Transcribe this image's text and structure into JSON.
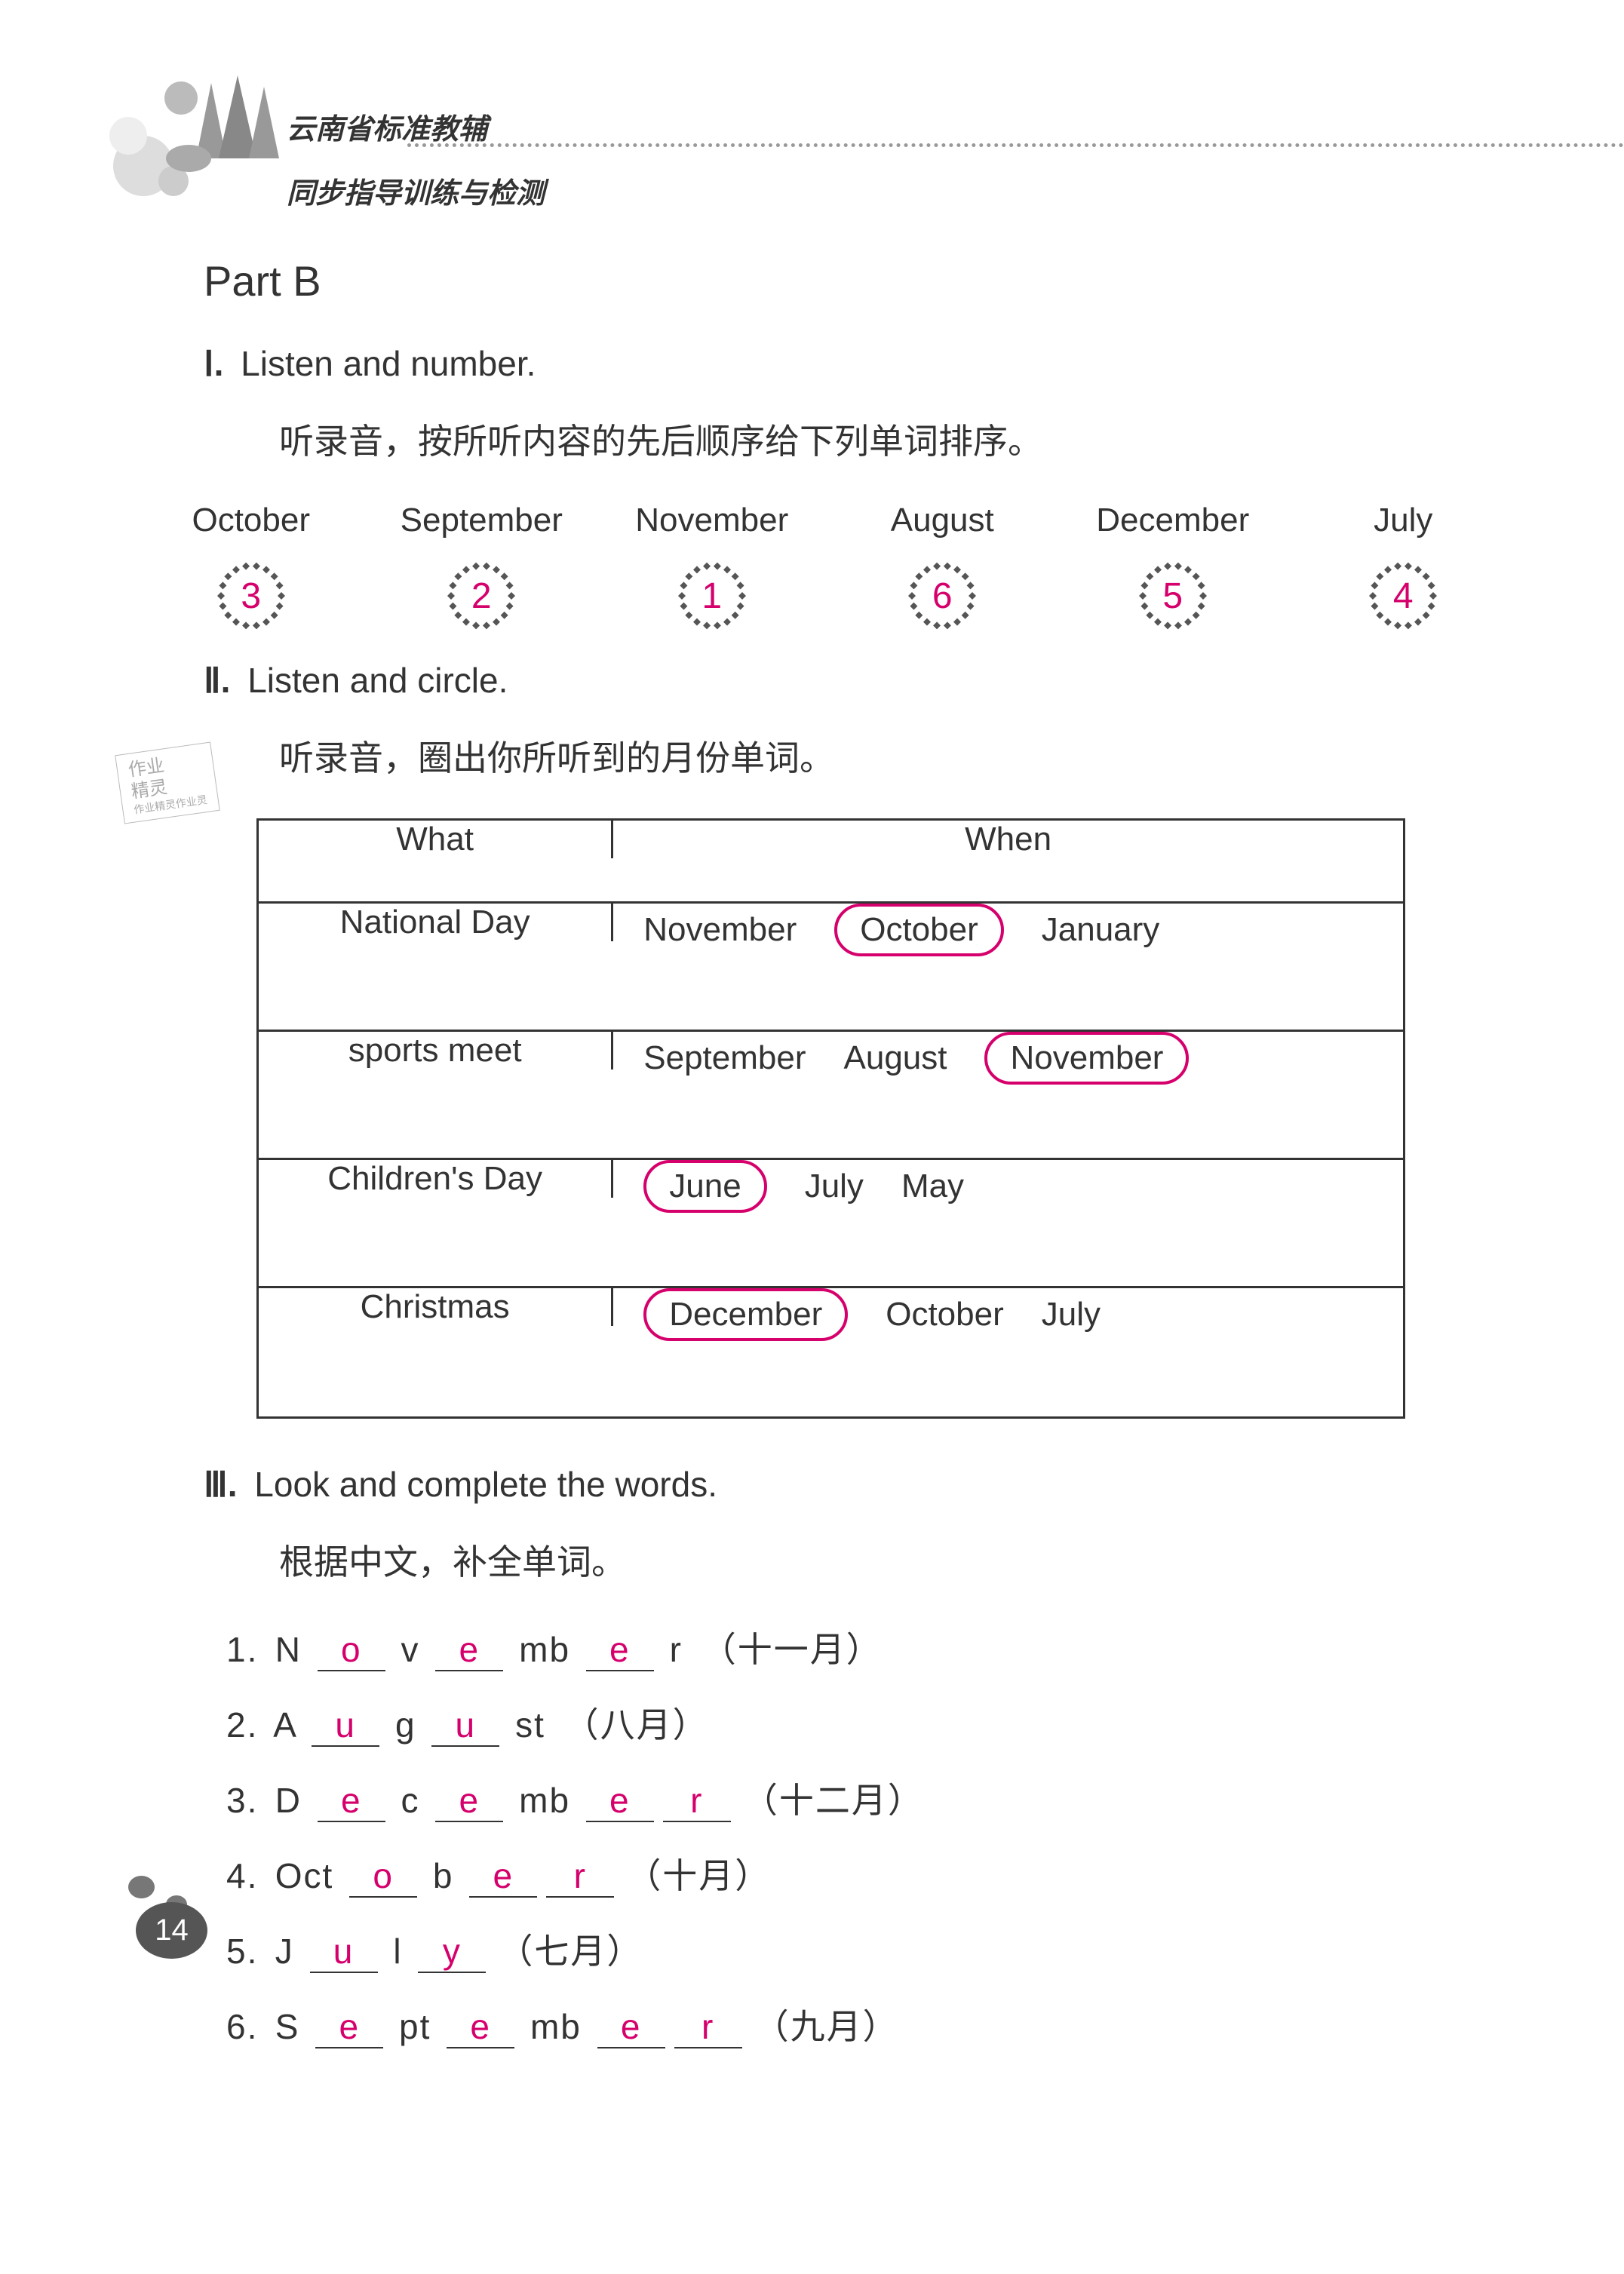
{
  "header": {
    "line1": "云南省标准教辅",
    "line2": "同步指导训练与检测"
  },
  "part_title": "Part B",
  "section1": {
    "roman": "Ⅰ.",
    "title_en": "Listen and number.",
    "title_cn": "听录音，按所听内容的先后顺序给下列单词排序。",
    "months": [
      "October",
      "September",
      "November",
      "August",
      "December",
      "July"
    ],
    "numbers": [
      "3",
      "2",
      "1",
      "6",
      "5",
      "4"
    ],
    "answer_color": "#d6006c"
  },
  "section2": {
    "roman": "Ⅱ.",
    "title_en": "Listen and circle.",
    "title_cn": "听录音，圈出你所听到的月份单词。",
    "table": {
      "header": [
        "What",
        "When"
      ],
      "rows": [
        {
          "what": "National Day",
          "when": [
            "November",
            "October",
            "January"
          ],
          "circled": 1
        },
        {
          "what": "sports meet",
          "when": [
            "September",
            "August",
            "November"
          ],
          "circled": 2
        },
        {
          "what": "Children's Day",
          "when": [
            "June",
            "July",
            "May"
          ],
          "circled": 0
        },
        {
          "what": "Christmas",
          "when": [
            "December",
            "October",
            "July"
          ],
          "circled": 0
        }
      ],
      "circle_color": "#d6006c"
    }
  },
  "section3": {
    "roman": "Ⅲ.",
    "title_en": "Look and complete the words.",
    "title_cn": "根据中文，补全单词。",
    "items": [
      {
        "num": "1.",
        "parts": [
          "N",
          {
            "b": "o"
          },
          "v",
          {
            "b": "e"
          },
          "mb",
          {
            "b": "e"
          },
          "r"
        ],
        "hint": "（十一月）"
      },
      {
        "num": "2.",
        "parts": [
          "A",
          {
            "b": "u"
          },
          "g",
          {
            "b": "u"
          },
          "st"
        ],
        "hint": "（八月）"
      },
      {
        "num": "3.",
        "parts": [
          "D",
          {
            "b": "e"
          },
          "c",
          {
            "b": "e"
          },
          "mb",
          {
            "b": "e"
          },
          {
            "b": "r"
          }
        ],
        "hint": "（十二月）"
      },
      {
        "num": "4.",
        "parts": [
          "Oct",
          {
            "b": "o"
          },
          "b",
          {
            "b": "e"
          },
          {
            "b": "r"
          }
        ],
        "hint": "（十月）"
      },
      {
        "num": "5.",
        "parts": [
          "J",
          {
            "b": "u"
          },
          "l",
          {
            "b": "y"
          }
        ],
        "hint": "（七月）"
      },
      {
        "num": "6.",
        "parts": [
          "S",
          {
            "b": "e"
          },
          "pt",
          {
            "b": "e"
          },
          "mb",
          {
            "b": "e"
          },
          {
            "b": "r"
          }
        ],
        "hint": "（九月）"
      }
    ],
    "answer_color": "#d6006c"
  },
  "page_number": "14",
  "stamp": {
    "l1": "作业",
    "l2": "精灵",
    "l3": "作业精灵作业灵"
  }
}
